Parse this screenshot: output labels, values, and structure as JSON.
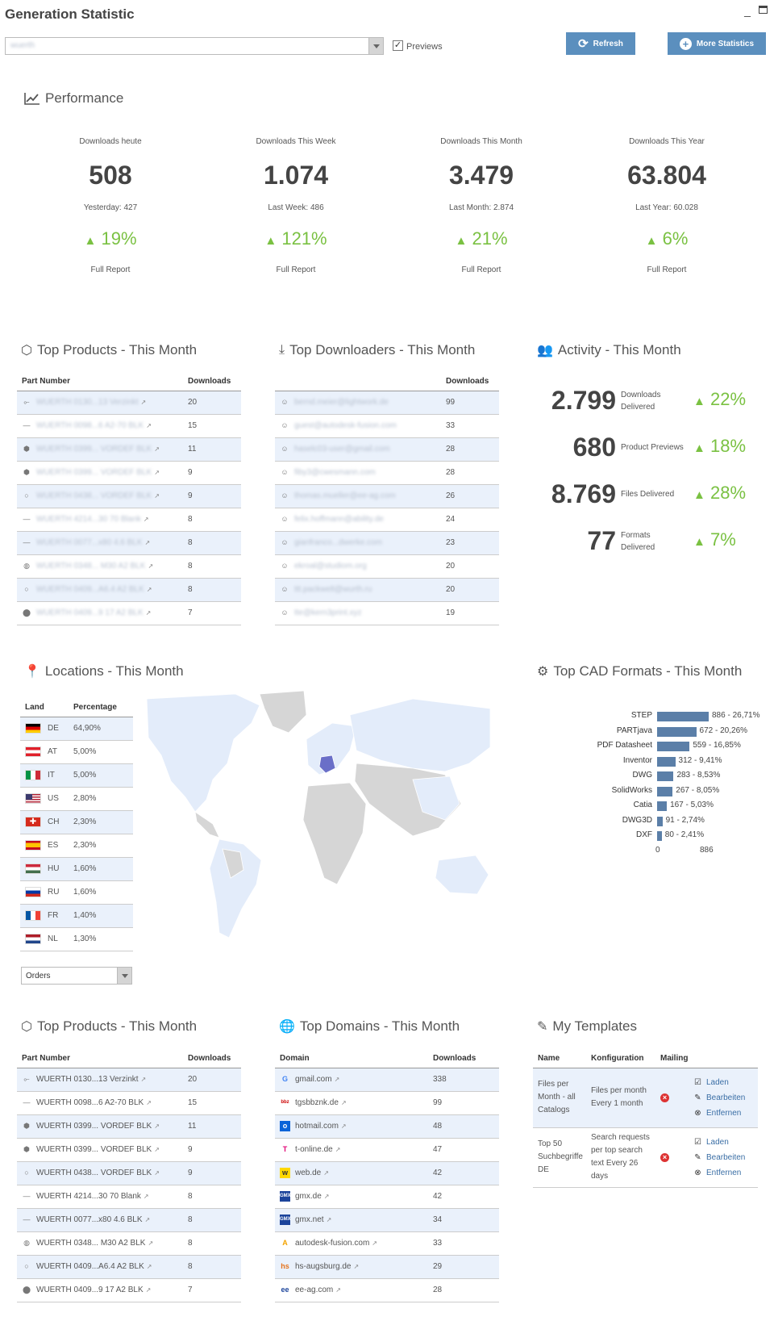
{
  "header": {
    "title": "Generation Statistic",
    "minimize_icon": "minimize-icon",
    "maximize_icon": "maximize-icon",
    "catalog_value": "wuerth",
    "previews_label": "Previews",
    "previews_checked": true,
    "refresh_label": "Refresh",
    "more_label": "More Statistics"
  },
  "performance": {
    "title": "Performance",
    "kpis": [
      {
        "label": "Downloads heute",
        "value": "508",
        "prev": "Yesterday: 427",
        "pct": "19%",
        "report": "Full Report"
      },
      {
        "label": "Downloads This Week",
        "value": "1.074",
        "prev": "Last Week: 486",
        "pct": "121%",
        "report": "Full Report"
      },
      {
        "label": "Downloads This Month",
        "value": "3.479",
        "prev": "Last Month: 2.874",
        "pct": "21%",
        "report": "Full Report"
      },
      {
        "label": "Downloads This Year",
        "value": "63.804",
        "prev": "Last Year: 60.028",
        "pct": "6%",
        "report": "Full Report"
      }
    ]
  },
  "top_products_1": {
    "title": "Top Products - This Month",
    "col_part": "Part Number",
    "col_downloads": "Downloads",
    "rows": [
      {
        "part": "WUERTH 0130...13 Verzinkt",
        "downloads": "20"
      },
      {
        "part": "WUERTH 0098...6 A2-70 BLK",
        "downloads": "15"
      },
      {
        "part": "WUERTH 0399... VORDEF BLK",
        "downloads": "11"
      },
      {
        "part": "WUERTH 0399... VORDEF BLK",
        "downloads": "9"
      },
      {
        "part": "WUERTH 0438... VORDEF BLK",
        "downloads": "9"
      },
      {
        "part": "WUERTH 4214...30 70 Blank",
        "downloads": "8"
      },
      {
        "part": "WUERTH 0077...x80 4.6 BLK",
        "downloads": "8"
      },
      {
        "part": "WUERTH 0348... M30 A2 BLK",
        "downloads": "8"
      },
      {
        "part": "WUERTH 0409...A6.4 A2 BLK",
        "downloads": "8"
      },
      {
        "part": "WUERTH 0409...9 17 A2 BLK",
        "downloads": "7"
      }
    ]
  },
  "top_downloaders": {
    "title": "Top Downloaders - This Month",
    "col_downloads": "Downloads",
    "rows": [
      {
        "user": "bernd.meier@lightwork.de",
        "downloads": "99"
      },
      {
        "user": "guest@autodesk-fusion.com",
        "downloads": "33"
      },
      {
        "user": "haselc03-user@gmail.com",
        "downloads": "28"
      },
      {
        "user": "fiby3@cwesmann.com",
        "downloads": "28"
      },
      {
        "user": "thomas.mueller@ee-ag.com",
        "downloads": "26"
      },
      {
        "user": "felix.hoffmann@ability.de",
        "downloads": "24"
      },
      {
        "user": "gianfranco...dwerke.com",
        "downloads": "23"
      },
      {
        "user": "ekroal@studiom.org",
        "downloads": "20"
      },
      {
        "user": "ttt.packwelt@wurth.ru",
        "downloads": "20"
      },
      {
        "user": "tte@kern3print.xyz",
        "downloads": "19"
      }
    ]
  },
  "activity": {
    "title": "Activity - This Month",
    "rows": [
      {
        "value": "2.799",
        "label": "Downloads Delivered",
        "pct": "22%"
      },
      {
        "value": "680",
        "label": "Product Previews",
        "pct": "18%"
      },
      {
        "value": "8.769",
        "label": "Files Delivered",
        "pct": "28%"
      },
      {
        "value": "77",
        "label": "Formats Delivered",
        "pct": "7%"
      }
    ]
  },
  "locations": {
    "title": "Locations - This Month",
    "col_land": "Land",
    "col_pct": "Percentage",
    "rows": [
      {
        "code": "DE",
        "pct": "64,90%"
      },
      {
        "code": "AT",
        "pct": "5,00%"
      },
      {
        "code": "IT",
        "pct": "5,00%"
      },
      {
        "code": "US",
        "pct": "2,80%"
      },
      {
        "code": "CH",
        "pct": "2,30%"
      },
      {
        "code": "ES",
        "pct": "2,30%"
      },
      {
        "code": "HU",
        "pct": "1,60%"
      },
      {
        "code": "RU",
        "pct": "1,60%"
      },
      {
        "code": "FR",
        "pct": "1,40%"
      },
      {
        "code": "NL",
        "pct": "1,30%"
      }
    ],
    "select_value": "Orders"
  },
  "cad_formats": {
    "title": "Top CAD Formats - This Month",
    "axis_min": "0",
    "axis_max": "886"
  },
  "chart_data": {
    "type": "bar",
    "orientation": "horizontal",
    "categories": [
      "STEP",
      "PARTjava",
      "PDF Datasheet",
      "Inventor",
      "DWG",
      "SolidWorks",
      "Catia",
      "DWG3D",
      "DXF"
    ],
    "values": [
      886,
      672,
      559,
      312,
      283,
      267,
      167,
      91,
      80
    ],
    "labels": [
      "886 - 26,71%",
      "672 - 20,26%",
      "559 - 16,85%",
      "312 - 9,41%",
      "283 - 8,53%",
      "267 - 8,05%",
      "167 - 5,03%",
      "91 - 2,74%",
      "80 - 2,41%"
    ],
    "xlim": [
      0,
      886
    ],
    "bar_color": "#5b7fa8"
  },
  "top_products_2": {
    "title": "Top Products - This Month",
    "col_part": "Part Number",
    "col_downloads": "Downloads",
    "rows": [
      {
        "part": "WUERTH 0130...13 Verzinkt",
        "downloads": "20"
      },
      {
        "part": "WUERTH 0098...6 A2-70 BLK",
        "downloads": "15"
      },
      {
        "part": "WUERTH 0399... VORDEF BLK",
        "downloads": "11"
      },
      {
        "part": "WUERTH 0399... VORDEF BLK",
        "downloads": "9"
      },
      {
        "part": "WUERTH 0438... VORDEF BLK",
        "downloads": "9"
      },
      {
        "part": "WUERTH 4214...30 70 Blank",
        "downloads": "8"
      },
      {
        "part": "WUERTH 0077...x80 4.6 BLK",
        "downloads": "8"
      },
      {
        "part": "WUERTH 0348... M30 A2 BLK",
        "downloads": "8"
      },
      {
        "part": "WUERTH 0409...A6.4 A2 BLK",
        "downloads": "8"
      },
      {
        "part": "WUERTH 0409...9 17 A2 BLK",
        "downloads": "7"
      }
    ]
  },
  "top_domains": {
    "title": "Top Domains - This Month",
    "col_domain": "Domain",
    "col_downloads": "Downloads",
    "rows": [
      {
        "domain": "gmail.com",
        "downloads": "338"
      },
      {
        "domain": "tgsbbznk.de",
        "downloads": "99"
      },
      {
        "domain": "hotmail.com",
        "downloads": "48"
      },
      {
        "domain": "t-online.de",
        "downloads": "47"
      },
      {
        "domain": "web.de",
        "downloads": "42"
      },
      {
        "domain": "gmx.de",
        "downloads": "42"
      },
      {
        "domain": "gmx.net",
        "downloads": "34"
      },
      {
        "domain": "autodesk-fusion.com",
        "downloads": "33"
      },
      {
        "domain": "hs-augsburg.de",
        "downloads": "29"
      },
      {
        "domain": "ee-ag.com",
        "downloads": "28"
      }
    ]
  },
  "templates": {
    "title": "My Templates",
    "col_name": "Name",
    "col_config": "Konfiguration",
    "col_mailing": "Mailing",
    "rows": [
      {
        "name": "Files per Month - all Catalogs",
        "config": "Files per month Every 1 month",
        "load": "Laden",
        "edit": "Bearbeiten",
        "remove": "Entfernen"
      },
      {
        "name": "Top 50 Suchbegriffe DE",
        "config": "Search requests per top search text Every 26 days",
        "load": "Laden",
        "edit": "Bearbeiten",
        "remove": "Entfernen"
      }
    ]
  },
  "colors": {
    "accent": "#5b8fbe",
    "positive": "#7ac142",
    "row_alt": "#eaf1fb",
    "map_highlight": "#6a6fc8",
    "map_light": "#e3ecfa",
    "map_grey": "#d6d6d6"
  }
}
